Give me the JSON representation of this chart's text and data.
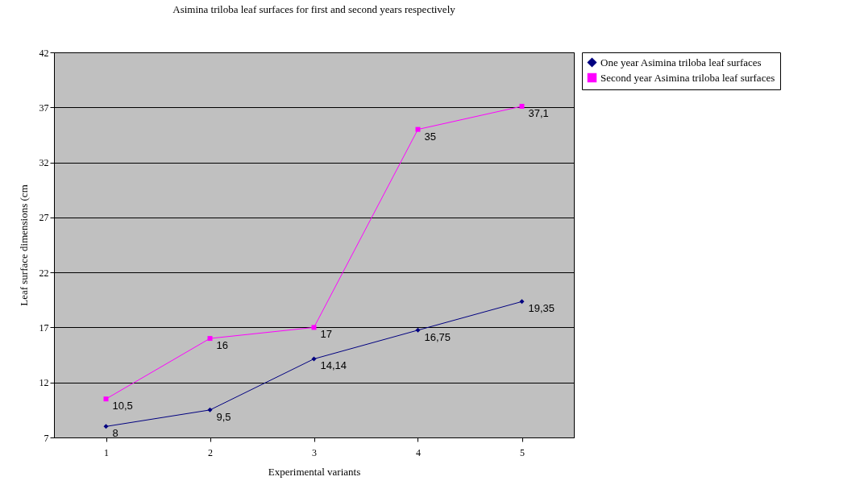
{
  "chart_data": {
    "type": "line",
    "title": "Asimina triloba  leaf surfaces for first and second years respectively",
    "xlabel": "Experimental variants",
    "ylabel": "Leaf surface dimensions (cm",
    "categories": [
      "1",
      "2",
      "3",
      "4",
      "5"
    ],
    "series": [
      {
        "name": "One year Asimina triloba leaf surfaces",
        "color": "#000080",
        "marker": "diamond",
        "values": [
          8,
          9.5,
          14.14,
          16.75,
          19.35
        ],
        "value_labels": [
          "8",
          "9,5",
          "14,14",
          "16,75",
          "19,35"
        ]
      },
      {
        "name": "Second year Asimina triloba leaf surfaces",
        "color": "#ff00ff",
        "marker": "square",
        "values": [
          10.5,
          16,
          17,
          35,
          37.1
        ],
        "value_labels": [
          "10,5",
          "16",
          "17",
          "35",
          "37,1"
        ]
      }
    ],
    "ylim": [
      7,
      42
    ],
    "yticks": [
      7,
      12,
      17,
      22,
      27,
      32,
      37,
      42
    ],
    "grid": "y",
    "legend": "right"
  }
}
